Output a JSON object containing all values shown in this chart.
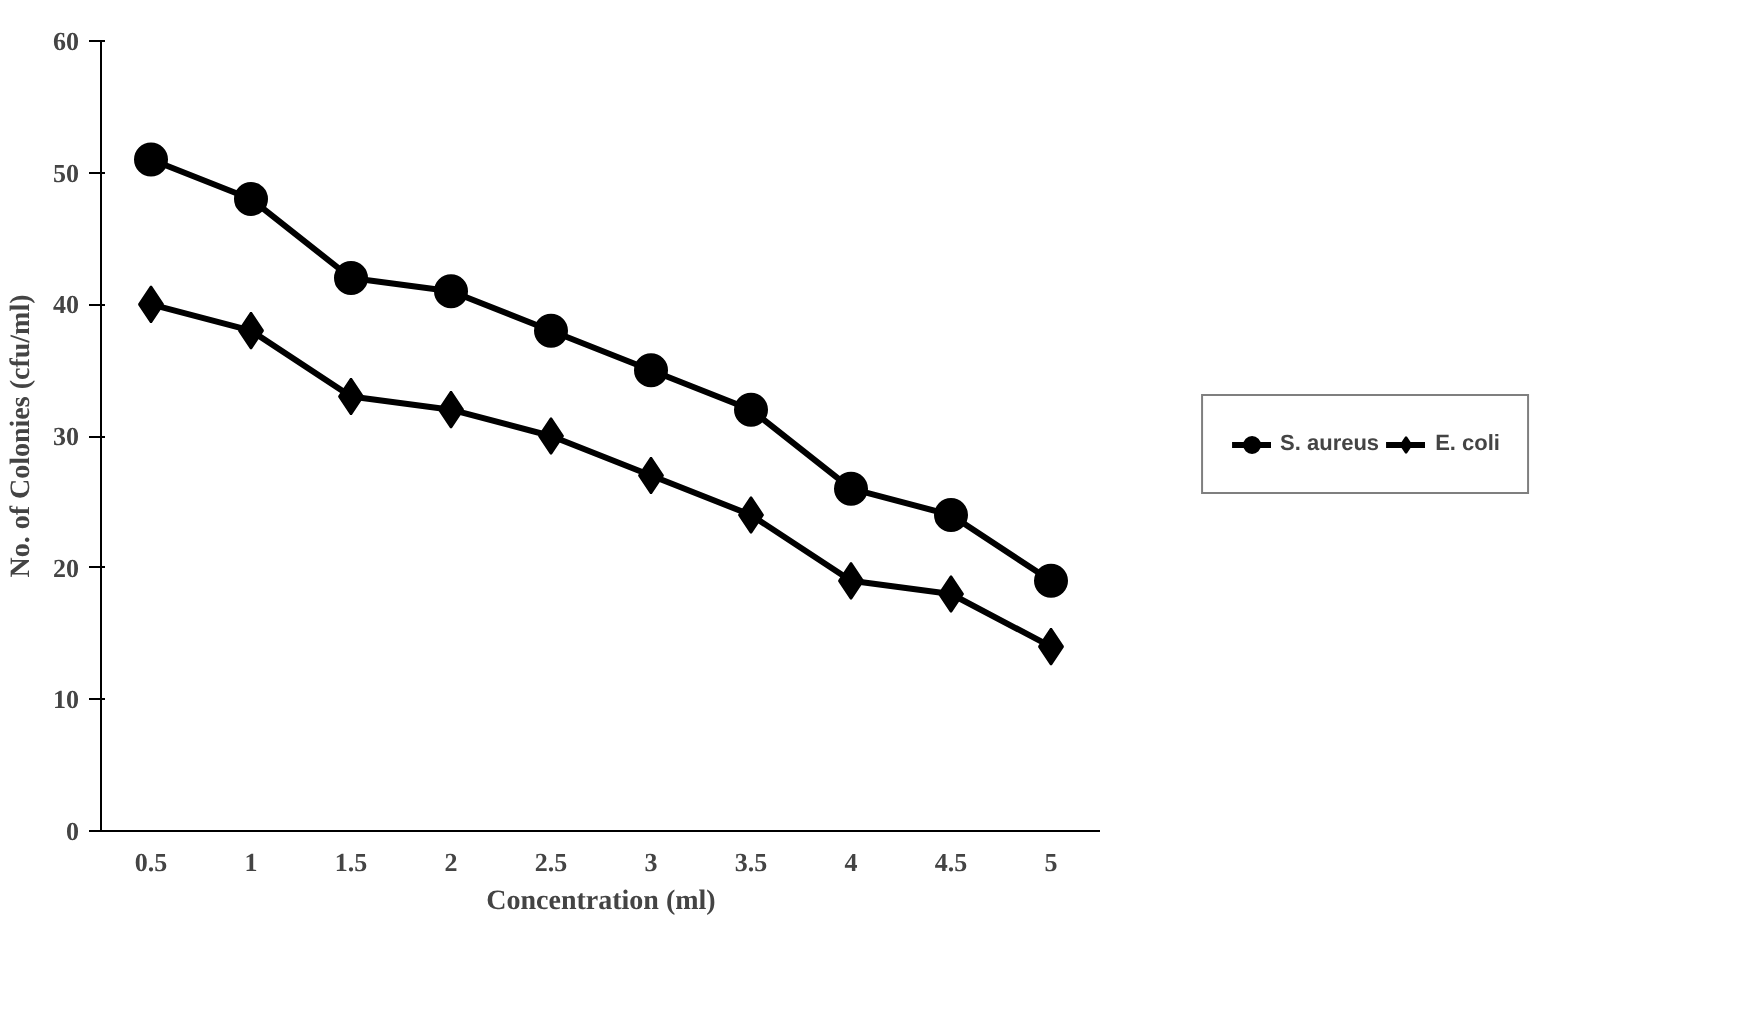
{
  "chart_data": {
    "type": "line",
    "xlabel": "Concentration (ml)",
    "ylabel": "No. of Colonies (cfu/ml)",
    "categories": [
      "0.5",
      "1",
      "1.5",
      "2",
      "2.5",
      "3",
      "3.5",
      "4",
      "4.5",
      "5"
    ],
    "series": [
      {
        "name": "S. aureus",
        "color": "#000000",
        "marker": "circle",
        "values": [
          51,
          48,
          42,
          41,
          38,
          35,
          32,
          26,
          24,
          19
        ]
      },
      {
        "name": "E. coli",
        "color": "#000000",
        "marker": "diamond",
        "values": [
          40,
          38,
          33,
          32,
          30,
          27,
          24,
          19,
          18,
          14
        ]
      }
    ],
    "ylim": [
      0,
      60
    ],
    "yticks": [
      0,
      10,
      20,
      30,
      40,
      50,
      60
    ],
    "grid": false,
    "legend": "right",
    "line_style": "solid"
  }
}
